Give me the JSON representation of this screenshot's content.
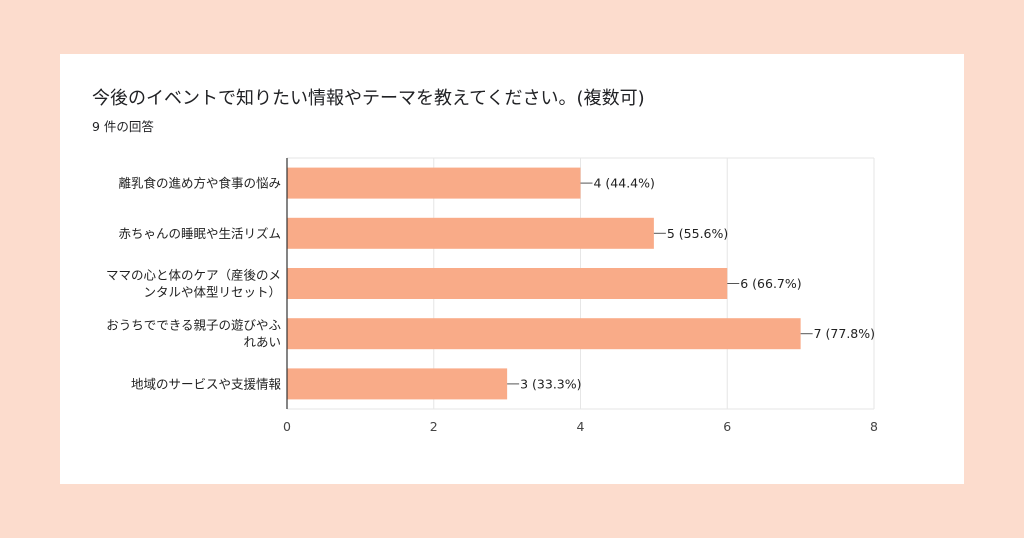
{
  "title": "今後のイベントで知りたい情報やテーマを教えてください。(複数可)",
  "subtitle": "9 件の回答",
  "colors": {
    "bar": "#f9ab88",
    "background": "#fcdccd",
    "card": "#ffffff",
    "grid": "#e6e6e6",
    "axis": "#333333"
  },
  "chart_data": {
    "type": "bar",
    "orientation": "horizontal",
    "categories": [
      [
        "離乳食の進め方や食事の悩み"
      ],
      [
        "赤ちゃんの睡眠や生活リズム"
      ],
      [
        "ママの心と体のケア（産後のメ",
        "ンタルや体型リセット）"
      ],
      [
        "おうちでできる親子の遊びやふ",
        "れあい"
      ],
      [
        "地域のサービスや支援情報"
      ]
    ],
    "values": [
      4,
      5,
      6,
      7,
      3
    ],
    "data_labels": [
      "4 (44.4%)",
      "5 (55.6%)",
      "6 (66.7%)",
      "7 (77.8%)",
      "3 (33.3%)"
    ],
    "xlim": [
      0,
      8
    ],
    "xticks": [
      0,
      2,
      4,
      6,
      8
    ],
    "grid": true,
    "xlabel": "",
    "ylabel": ""
  }
}
